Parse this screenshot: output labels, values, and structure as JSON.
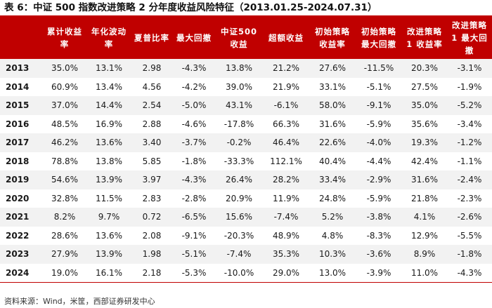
{
  "title": "表 6：中证 500 指数改进策略 2 分年度收益风险特征（2013.01.25-2024.07.31）",
  "table": {
    "headers": [
      "",
      "累计收益率",
      "年化波动率",
      "夏普比率",
      "最大回撤",
      "中证500 收益",
      "超额收益",
      "初始策略收益率",
      "初始策略最大回撤",
      "改进策略 1 收益率",
      "改进策略 1 最大回撤"
    ],
    "rows": [
      [
        "2013",
        "35.0%",
        "13.1%",
        "2.98",
        "-4.3%",
        "13.8%",
        "21.2%",
        "27.6%",
        "-11.5%",
        "20.3%",
        "-3.1%"
      ],
      [
        "2014",
        "60.9%",
        "13.4%",
        "4.56",
        "-4.2%",
        "39.0%",
        "21.9%",
        "33.1%",
        "-5.1%",
        "27.5%",
        "-1.9%"
      ],
      [
        "2015",
        "37.0%",
        "14.4%",
        "2.54",
        "-5.0%",
        "43.1%",
        "-6.1%",
        "58.0%",
        "-9.1%",
        "35.0%",
        "-5.2%"
      ],
      [
        "2016",
        "48.5%",
        "16.9%",
        "2.88",
        "-4.6%",
        "-17.8%",
        "66.3%",
        "31.6%",
        "-5.9%",
        "35.6%",
        "-3.4%"
      ],
      [
        "2017",
        "46.2%",
        "13.6%",
        "3.40",
        "-3.7%",
        "-0.2%",
        "46.4%",
        "22.6%",
        "-4.0%",
        "19.3%",
        "-1.2%"
      ],
      [
        "2018",
        "78.8%",
        "13.8%",
        "5.85",
        "-1.8%",
        "-33.3%",
        "112.1%",
        "40.4%",
        "-4.4%",
        "42.4%",
        "-1.1%"
      ],
      [
        "2019",
        "54.6%",
        "13.9%",
        "3.97",
        "-4.3%",
        "26.4%",
        "28.2%",
        "33.4%",
        "-2.9%",
        "31.6%",
        "-2.4%"
      ],
      [
        "2020",
        "32.8%",
        "11.5%",
        "2.83",
        "-2.8%",
        "20.9%",
        "11.9%",
        "24.8%",
        "-5.9%",
        "21.8%",
        "-2.3%"
      ],
      [
        "2021",
        "8.2%",
        "9.7%",
        "0.72",
        "-6.5%",
        "15.6%",
        "-7.4%",
        "5.2%",
        "-3.8%",
        "4.1%",
        "-2.6%"
      ],
      [
        "2022",
        "28.6%",
        "13.6%",
        "2.08",
        "-9.1%",
        "-20.3%",
        "48.9%",
        "4.8%",
        "-8.3%",
        "12.9%",
        "-5.5%"
      ],
      [
        "2023",
        "27.9%",
        "13.9%",
        "1.98",
        "-5.1%",
        "-7.4%",
        "35.3%",
        "10.3%",
        "-3.6%",
        "8.9%",
        "-1.8%"
      ],
      [
        "2024",
        "19.0%",
        "16.1%",
        "2.18",
        "-5.3%",
        "-10.0%",
        "29.0%",
        "13.0%",
        "-3.9%",
        "11.0%",
        "-4.3%"
      ]
    ]
  },
  "source": "资料来源：Wind，米筐，西部证券研发中心",
  "colors": {
    "header_bg": "#c00000",
    "header_text": "#ffffff",
    "stripe": "#f2f2f2"
  }
}
